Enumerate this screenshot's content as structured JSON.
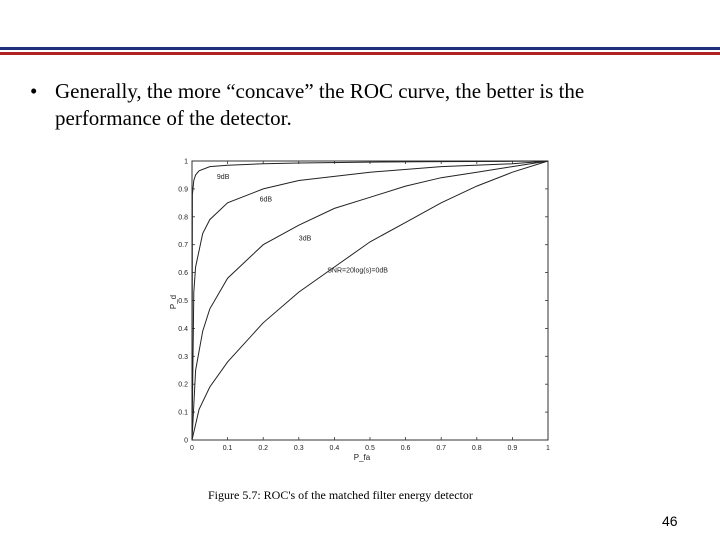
{
  "slide": {
    "bullet_symbol": "•",
    "bullet_text": "Generally, the more “concave” the ROC curve, the better is the performance of the detector.",
    "caption": "Figure 5.7: ROC's of the matched filter energy detector",
    "page_number": "46",
    "colors": {
      "rule_top": "#1f2f7a",
      "rule_bottom": "#b22222"
    }
  },
  "chart_data": {
    "type": "line",
    "xlabel": "P_fa",
    "ylabel": "P_d",
    "xlim": [
      0,
      1
    ],
    "ylim": [
      0,
      1
    ],
    "x_ticks": [
      "0",
      "0.1",
      "0.2",
      "0.3",
      "0.4",
      "0.5",
      "0.6",
      "0.7",
      "0.8",
      "0.9",
      "1"
    ],
    "y_ticks": [
      "0",
      "0.1",
      "0.2",
      "0.3",
      "0.4",
      "0.5",
      "0.6",
      "0.7",
      "0.8",
      "0.9",
      "1"
    ],
    "grid": false,
    "series": [
      {
        "name": "9dB",
        "x": [
          0,
          0.001,
          0.005,
          0.01,
          0.02,
          0.05,
          0.1,
          0.2,
          0.3,
          0.5,
          0.7,
          0.9,
          1
        ],
        "y": [
          0,
          0.88,
          0.93,
          0.95,
          0.965,
          0.98,
          0.985,
          0.99,
          0.993,
          0.996,
          0.998,
          0.999,
          1
        ]
      },
      {
        "name": "6dB",
        "x": [
          0,
          0.005,
          0.01,
          0.03,
          0.05,
          0.1,
          0.2,
          0.3,
          0.5,
          0.7,
          0.9,
          1
        ],
        "y": [
          0,
          0.53,
          0.62,
          0.74,
          0.79,
          0.85,
          0.9,
          0.93,
          0.96,
          0.98,
          0.99,
          1
        ]
      },
      {
        "name": "3dB",
        "x": [
          0,
          0.01,
          0.03,
          0.05,
          0.1,
          0.2,
          0.3,
          0.4,
          0.5,
          0.6,
          0.7,
          0.8,
          0.9,
          1
        ],
        "y": [
          0,
          0.25,
          0.39,
          0.47,
          0.58,
          0.7,
          0.77,
          0.83,
          0.87,
          0.91,
          0.94,
          0.96,
          0.98,
          1
        ]
      },
      {
        "name": "SNR=20log(s)=0dB",
        "x": [
          0,
          0.02,
          0.05,
          0.1,
          0.2,
          0.3,
          0.4,
          0.5,
          0.6,
          0.7,
          0.8,
          0.9,
          1
        ],
        "y": [
          0,
          0.11,
          0.19,
          0.28,
          0.42,
          0.53,
          0.62,
          0.71,
          0.78,
          0.85,
          0.91,
          0.96,
          1
        ]
      }
    ],
    "annotations": [
      {
        "text": "9dB",
        "x": 0.07,
        "y": 0.935
      },
      {
        "text": "6dB",
        "x": 0.19,
        "y": 0.855
      },
      {
        "text": "3dB",
        "x": 0.3,
        "y": 0.715
      },
      {
        "text": "SNR=20log(s)=0dB",
        "x": 0.38,
        "y": 0.6
      }
    ]
  }
}
